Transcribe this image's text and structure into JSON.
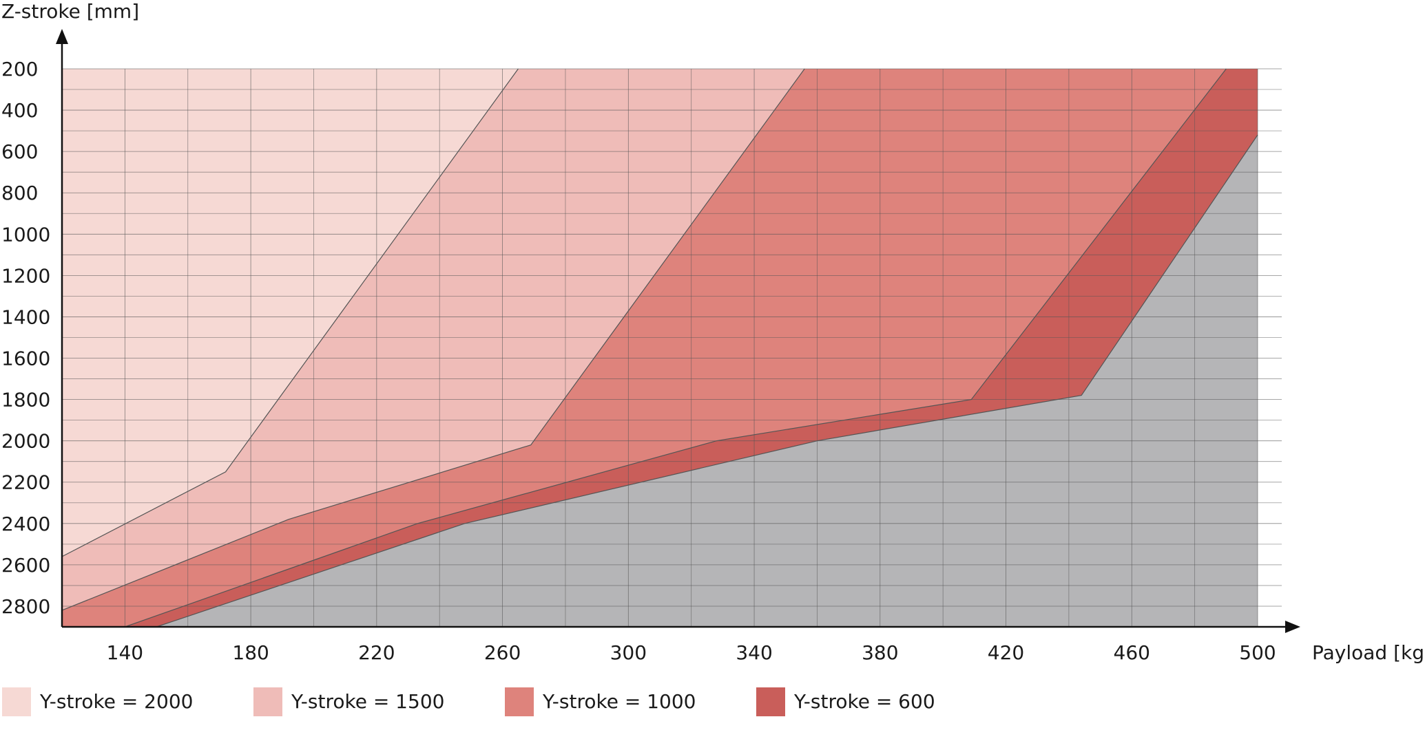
{
  "chart_data": {
    "type": "area",
    "y_label": "Z-stroke [mm]",
    "x_label": "Payload [kg]",
    "xlim": [
      120,
      500
    ],
    "ylim": [
      200,
      2900
    ],
    "y_reversed": true,
    "xticks": [
      140,
      180,
      220,
      260,
      300,
      340,
      380,
      420,
      460,
      500
    ],
    "yticks": [
      200,
      400,
      600,
      800,
      1000,
      1200,
      1400,
      1600,
      1800,
      2000,
      2200,
      2400,
      2600,
      2800
    ],
    "x_minor_ticks": [
      160,
      200,
      240,
      280,
      320,
      360,
      400,
      440,
      480
    ],
    "y_minor_ticks": [
      300,
      500,
      700,
      900,
      1100,
      1300,
      1500,
      1700,
      1900,
      2100,
      2300,
      2500,
      2700
    ],
    "grid": true,
    "background_color": "#b5b5b7",
    "legend": "bottom",
    "series": [
      {
        "name": "Y-stroke = 2000",
        "color": "#f6d9d4",
        "x": [
          120,
          172,
          265
        ],
        "values": [
          2560,
          2150,
          200
        ]
      },
      {
        "name": "Y-stroke = 1500",
        "color": "#efbcb8",
        "x": [
          120,
          192,
          269,
          356
        ],
        "values": [
          2820,
          2380,
          2020,
          200
        ]
      },
      {
        "name": "Y-stroke = 1000",
        "color": "#de837c",
        "x": [
          140,
          233,
          328,
          409,
          490
        ],
        "values": [
          2900,
          2400,
          2000,
          1800,
          200
        ]
      },
      {
        "name": "Y-stroke = 600",
        "color": "#c95e5a",
        "x": [
          150,
          248,
          360,
          444,
          500
        ],
        "values": [
          2900,
          2400,
          2000,
          1780,
          520
        ]
      }
    ]
  }
}
